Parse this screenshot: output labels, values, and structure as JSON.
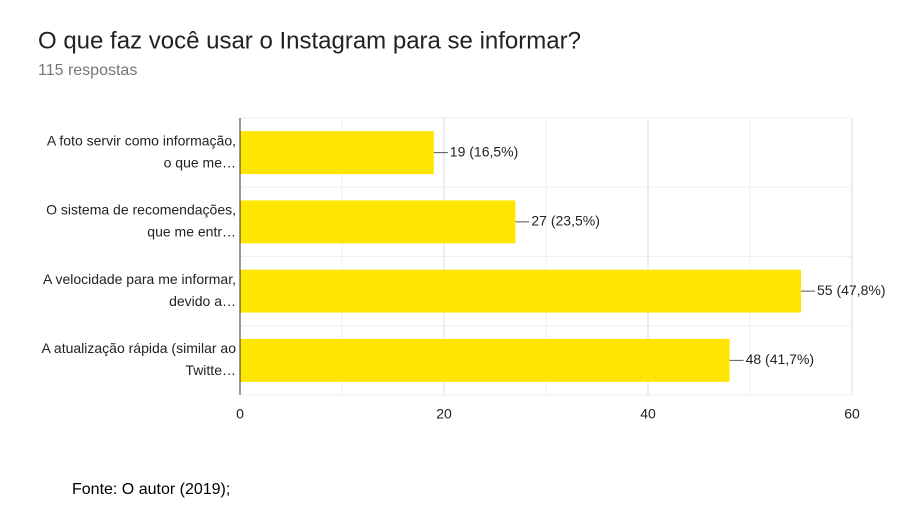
{
  "chart_data": {
    "type": "bar",
    "orientation": "horizontal",
    "title": "O que faz você usar o Instagram para se informar?",
    "subtitle": "115 respostas",
    "categories": [
      [
        "A foto servir como informação,",
        "o que me…"
      ],
      [
        "O sistema de recomendações,",
        "que me entr…"
      ],
      [
        "A velocidade para me informar,",
        "devido a…"
      ],
      [
        "A atualização rápida (similar ao",
        "Twitte…"
      ]
    ],
    "values": [
      19,
      27,
      55,
      48
    ],
    "value_labels": [
      "19 (16,5%)",
      "27 (23,5%)",
      "55 (47,8%)",
      "48 (41,7%)"
    ],
    "color": "#ffe600",
    "xlim": [
      0,
      60
    ],
    "xticks": [
      0,
      20,
      40,
      60
    ],
    "xminor": [
      10,
      30,
      50
    ],
    "grid": true
  },
  "footnote": "Fonte: O autor (2019);"
}
